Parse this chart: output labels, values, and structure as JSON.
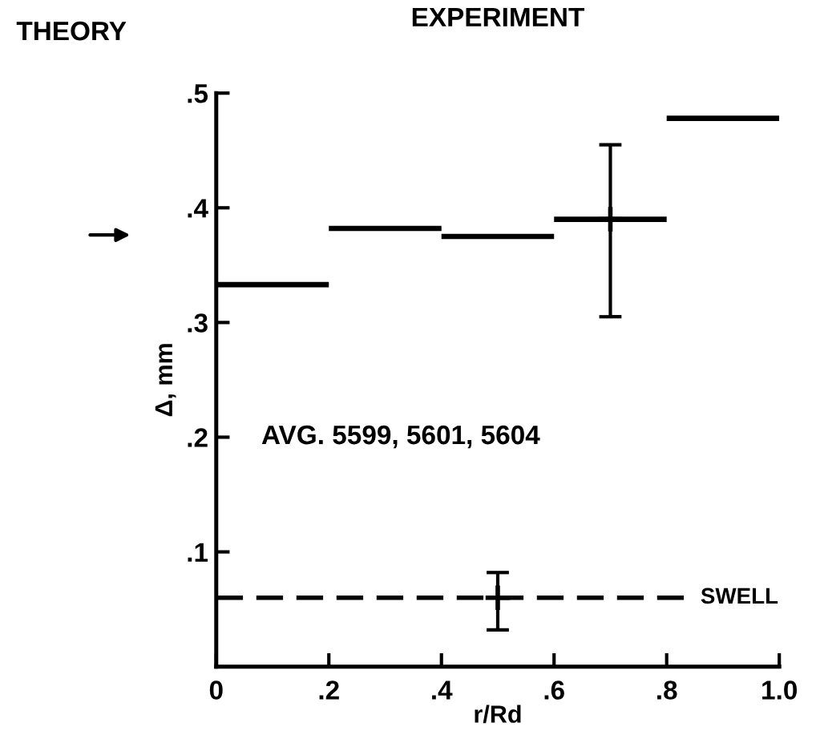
{
  "chart_data": {
    "type": "line",
    "title": "EXPERIMENT",
    "xlabel": "r/Rd",
    "ylabel": "Δ, mm",
    "annotations": [
      "THEORY",
      "AVG. 5599, 5601, 5604"
    ],
    "xlim": [
      0,
      1.0
    ],
    "ylim": [
      0,
      0.5
    ],
    "xticks": [
      {
        "value": 0,
        "label": "0"
      },
      {
        "value": 0.2,
        "label": ".2"
      },
      {
        "value": 0.4,
        "label": ".4"
      },
      {
        "value": 0.6,
        "label": ".6"
      },
      {
        "value": 0.8,
        "label": ".8"
      },
      {
        "value": 1.0,
        "label": "1.0"
      }
    ],
    "yticks": [
      {
        "value": 0.1,
        "label": ".1"
      },
      {
        "value": 0.2,
        "label": ".2"
      },
      {
        "value": 0.3,
        "label": ".3"
      },
      {
        "value": 0.4,
        "label": ".4"
      },
      {
        "value": 0.5,
        "label": ".5"
      }
    ],
    "series": [
      {
        "color": "#000000",
        "x": [
          0,
          0.2
        ],
        "values": [
          0.333,
          0.333
        ]
      },
      {
        "color": "#000000",
        "x": [
          0.2,
          0.4
        ],
        "values": [
          0.382,
          0.382
        ]
      },
      {
        "color": "#000000",
        "x": [
          0.4,
          0.6
        ],
        "values": [
          0.375,
          0.375
        ]
      },
      {
        "color": "#000000",
        "x": [
          0.6,
          0.8
        ],
        "values": [
          0.39,
          0.39
        ]
      },
      {
        "color": "#000000",
        "x": [
          0.8,
          1.0
        ],
        "values": [
          0.478,
          0.478
        ]
      },
      {
        "type": "scatter",
        "color": "#000000",
        "marker": "cross",
        "x": [
          0.7
        ],
        "values": [
          0.39
        ],
        "errors": [
          [
            0.305,
            0.455
          ]
        ]
      },
      {
        "type": "scatter",
        "color": "#000000",
        "marker": "cross",
        "x": [
          0.5
        ],
        "values": [
          0.06
        ],
        "errors": [
          [
            0.032,
            0.082
          ]
        ]
      }
    ],
    "ref_lines": [
      {
        "axis": "y",
        "value": 0.06,
        "label": "SWELL",
        "color": "#000000",
        "line_style": "dashed"
      }
    ],
    "grid": false,
    "legend": false
  }
}
